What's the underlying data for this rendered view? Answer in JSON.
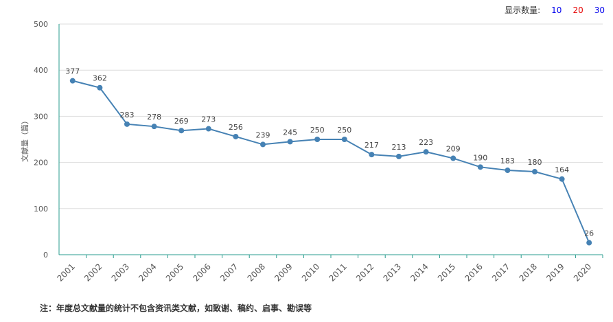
{
  "display": {
    "label": "显示数量:",
    "options": [
      {
        "label": "10",
        "color": "#0000ee"
      },
      {
        "label": "20",
        "color": "#e60000"
      },
      {
        "label": "30",
        "color": "#0000ee"
      }
    ]
  },
  "footnote": "注：年度总文献量的统计不包含资讯类文献，如致谢、稿约、启事、勘误等",
  "chart_data": {
    "type": "line",
    "ylabel": "文献量（篇）",
    "ylim": [
      0,
      500
    ],
    "yticks": [
      0,
      100,
      200,
      300,
      400,
      500
    ],
    "grid": true,
    "line_color": "#4682b4",
    "categories": [
      "2001",
      "2002",
      "2003",
      "2004",
      "2005",
      "2006",
      "2007",
      "2008",
      "2009",
      "2010",
      "2011",
      "2012",
      "2013",
      "2014",
      "2015",
      "2016",
      "2017",
      "2018",
      "2019",
      "2020"
    ],
    "series": [
      {
        "values": [
          377,
          362,
          283,
          278,
          269,
          273,
          256,
          239,
          245,
          250,
          250,
          217,
          213,
          223,
          209,
          190,
          183,
          180,
          164,
          26
        ]
      }
    ]
  }
}
